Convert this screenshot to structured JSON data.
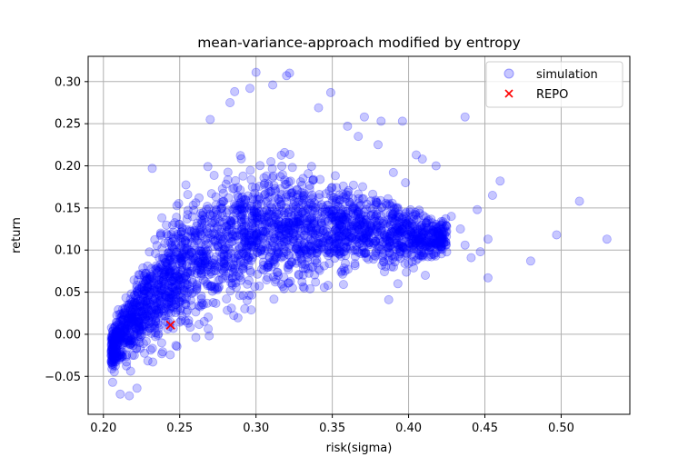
{
  "chart_data": {
    "type": "scatter",
    "title": "mean-variance-approach modified by entropy",
    "xlabel": "risk(sigma)",
    "ylabel": "return",
    "xlim": [
      0.19,
      0.545
    ],
    "ylim": [
      -0.095,
      0.33
    ],
    "xticks": [
      0.2,
      0.25,
      0.3,
      0.35,
      0.4,
      0.45,
      0.5
    ],
    "xtick_labels": [
      "0.20",
      "0.25",
      "0.30",
      "0.35",
      "0.40",
      "0.45",
      "0.50"
    ],
    "yticks": [
      -0.05,
      0.0,
      0.05,
      0.1,
      0.15,
      0.2,
      0.25,
      0.3
    ],
    "ytick_labels": [
      "−0.05",
      "0.00",
      "0.05",
      "0.10",
      "0.15",
      "0.20",
      "0.25",
      "0.30"
    ],
    "grid": true,
    "legend_position": "top-right",
    "series": [
      {
        "name": "simulation",
        "marker": "circle",
        "color": "#0000ff",
        "alpha": 0.22,
        "edge_color": "#0000ff",
        "outliers": [
          [
            0.53,
            0.113
          ],
          [
            0.512,
            0.158
          ],
          [
            0.497,
            0.118
          ],
          [
            0.48,
            0.087
          ],
          [
            0.46,
            0.182
          ],
          [
            0.455,
            0.165
          ],
          [
            0.452,
            0.113
          ],
          [
            0.447,
            0.098
          ],
          [
            0.445,
            0.148
          ],
          [
            0.441,
            0.091
          ],
          [
            0.437,
            0.106
          ],
          [
            0.434,
            0.125
          ],
          [
            0.428,
            0.14
          ],
          [
            0.425,
            0.128
          ],
          [
            0.423,
            0.108
          ],
          [
            0.42,
            0.117
          ],
          [
            0.418,
            0.2
          ],
          [
            0.415,
            0.092
          ],
          [
            0.411,
            0.07
          ],
          [
            0.409,
            0.208
          ],
          [
            0.405,
            0.213
          ],
          [
            0.403,
            0.105
          ],
          [
            0.401,
            0.145
          ],
          [
            0.398,
            0.18
          ],
          [
            0.396,
            0.253
          ],
          [
            0.393,
            0.06
          ],
          [
            0.39,
            0.192
          ],
          [
            0.387,
            0.041
          ],
          [
            0.382,
            0.253
          ],
          [
            0.38,
            0.225
          ],
          [
            0.371,
            0.258
          ],
          [
            0.367,
            0.235
          ],
          [
            0.36,
            0.247
          ],
          [
            0.349,
            0.287
          ],
          [
            0.341,
            0.269
          ],
          [
            0.322,
            0.31
          ],
          [
            0.32,
            0.307
          ],
          [
            0.311,
            0.296
          ],
          [
            0.3,
            0.311
          ],
          [
            0.296,
            0.292
          ],
          [
            0.286,
            0.288
          ],
          [
            0.283,
            0.275
          ],
          [
            0.27,
            0.255
          ],
          [
            0.437,
            0.258
          ],
          [
            0.452,
            0.067
          ],
          [
            0.232,
            0.197
          ],
          [
            0.211,
            -0.071
          ],
          [
            0.217,
            -0.073
          ],
          [
            0.206,
            -0.057
          ],
          [
            0.222,
            -0.064
          ]
        ],
        "point_count_estimate": 20000
      },
      {
        "name": "REPO",
        "marker": "x",
        "color": "#ff0000",
        "points": [
          [
            0.244,
            0.011
          ]
        ]
      }
    ]
  }
}
